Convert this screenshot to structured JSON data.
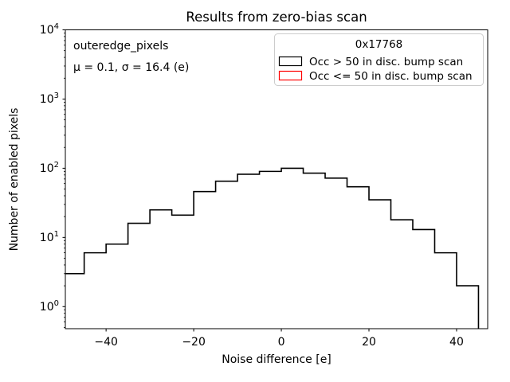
{
  "window": {
    "background": "#ffffff"
  },
  "figure": {
    "title": "Results from zero-bias scan",
    "xlabel": "Noise difference [e]",
    "ylabel": "Number of enabled pixels",
    "annotation_line1": "outeredge_pixels",
    "annotation_line2": "μ = 0.1, σ = 16.4 (e)"
  },
  "legend": {
    "title": "0x17768",
    "entries": [
      {
        "label": "Occ > 50 in disc. bump scan",
        "edge_color": "#000000"
      },
      {
        "label": "Occ <= 50 in disc. bump scan",
        "edge_color": "#ff0000"
      }
    ]
  },
  "chart_data": {
    "type": "bar",
    "subtype": "step_histogram",
    "title": "Results from zero-bias scan",
    "xlabel": "Noise difference [e]",
    "ylabel": "Number of enabled pixels",
    "yscale": "log",
    "grid": false,
    "legend_position": "upper right",
    "bin_edges": [
      -50,
      -45,
      -40,
      -35,
      -30,
      -25,
      -20,
      -15,
      -10,
      -5,
      0,
      5,
      10,
      15,
      20,
      25,
      30,
      35,
      40,
      45
    ],
    "counts": [
      3,
      6,
      8,
      16,
      25,
      21,
      46,
      65,
      82,
      90,
      100,
      85,
      72,
      54,
      35,
      18,
      13,
      6,
      2
    ],
    "series_name": "Occ > 50 in disc. bump scan",
    "line_color": "#000000",
    "x_ticks": [
      -40,
      -20,
      0,
      20,
      40
    ],
    "y_tick_exponents": [
      0,
      1,
      2,
      3,
      4
    ],
    "xlim": [
      -49.3,
      47.1
    ],
    "ylim": [
      0.48,
      10000
    ],
    "stats": {
      "mu": 0.1,
      "sigma": 16.4,
      "unit": "e"
    }
  }
}
